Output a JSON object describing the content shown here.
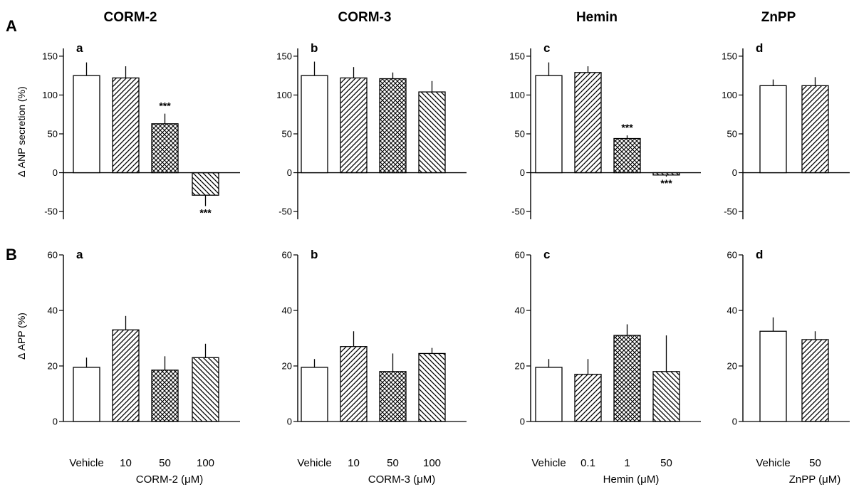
{
  "row_labels": [
    "A",
    "B"
  ],
  "column_titles": [
    "CORM-2",
    "CORM-3",
    "Hemin",
    "ZnPP"
  ],
  "colors": {
    "ink": "#000000",
    "background": "#ffffff"
  },
  "chart_data": [
    {
      "type": "bar",
      "row": "A",
      "panel": "a",
      "title": "CORM-2",
      "categories": [
        "Vehicle",
        "10",
        "50",
        "100"
      ],
      "values": [
        125,
        122,
        63,
        -29
      ],
      "errors": [
        17,
        15,
        13,
        14
      ],
      "patterns": [
        "open",
        "hatch-right",
        "crosshatch",
        "hatch-left"
      ],
      "significance": [
        "",
        "",
        "***",
        "***"
      ],
      "ylabel": "Δ ANP secretion (%)",
      "yticks": [
        -50,
        0,
        50,
        100,
        150
      ],
      "ylim": [
        -60,
        160
      ],
      "xlabel": "CORM-2 (μM)"
    },
    {
      "type": "bar",
      "row": "A",
      "panel": "b",
      "title": "CORM-3",
      "categories": [
        "Vehicle",
        "10",
        "50",
        "100"
      ],
      "values": [
        125,
        122,
        121,
        104
      ],
      "errors": [
        18,
        14,
        8,
        14
      ],
      "patterns": [
        "open",
        "hatch-right",
        "crosshatch",
        "hatch-left"
      ],
      "significance": [
        "",
        "",
        "",
        ""
      ],
      "yticks": [
        -50,
        0,
        50,
        100,
        150
      ],
      "ylim": [
        -60,
        160
      ],
      "xlabel": "CORM-3 (μM)"
    },
    {
      "type": "bar",
      "row": "A",
      "panel": "c",
      "title": "Hemin",
      "categories": [
        "Vehicle",
        "0.1",
        "1",
        "50"
      ],
      "values": [
        125,
        129,
        44,
        -3
      ],
      "errors": [
        17,
        8,
        4,
        2
      ],
      "patterns": [
        "open",
        "hatch-right",
        "crosshatch",
        "hatch-left"
      ],
      "significance": [
        "",
        "",
        "***",
        "***"
      ],
      "yticks": [
        -50,
        0,
        50,
        100,
        150
      ],
      "ylim": [
        -60,
        160
      ],
      "xlabel": "Hemin (μM)"
    },
    {
      "type": "bar",
      "row": "A",
      "panel": "d",
      "title": "ZnPP",
      "categories": [
        "Vehicle",
        "50"
      ],
      "values": [
        112,
        112
      ],
      "errors": [
        8,
        11
      ],
      "patterns": [
        "open",
        "hatch-right"
      ],
      "significance": [
        "",
        ""
      ],
      "yticks": [
        -50,
        0,
        50,
        100,
        150
      ],
      "ylim": [
        -60,
        160
      ],
      "xlabel": "ZnPP (μM)"
    },
    {
      "type": "bar",
      "row": "B",
      "panel": "a",
      "categories": [
        "Vehicle",
        "10",
        "50",
        "100"
      ],
      "values": [
        19.5,
        33,
        18.5,
        23
      ],
      "errors": [
        3.5,
        5,
        5,
        5
      ],
      "patterns": [
        "open",
        "hatch-right",
        "crosshatch",
        "hatch-left"
      ],
      "significance": [
        "",
        "",
        "",
        ""
      ],
      "ylabel": "Δ APP (%)",
      "yticks": [
        0,
        20,
        40,
        60
      ],
      "ylim": [
        0,
        60
      ],
      "xlabel": "CORM-2 (μM)"
    },
    {
      "type": "bar",
      "row": "B",
      "panel": "b",
      "categories": [
        "Vehicle",
        "10",
        "50",
        "100"
      ],
      "values": [
        19.5,
        27,
        18,
        24.5
      ],
      "errors": [
        3,
        5.5,
        6.5,
        2
      ],
      "patterns": [
        "open",
        "hatch-right",
        "crosshatch",
        "hatch-left"
      ],
      "significance": [
        "",
        "",
        "",
        ""
      ],
      "yticks": [
        0,
        20,
        40,
        60
      ],
      "ylim": [
        0,
        60
      ],
      "xlabel": "CORM-3 (μM)"
    },
    {
      "type": "bar",
      "row": "B",
      "panel": "c",
      "categories": [
        "Vehicle",
        "0.1",
        "1",
        "50"
      ],
      "values": [
        19.5,
        17,
        31,
        18
      ],
      "errors": [
        3,
        5.5,
        4,
        13
      ],
      "patterns": [
        "open",
        "hatch-right",
        "crosshatch",
        "hatch-left"
      ],
      "significance": [
        "",
        "",
        "",
        ""
      ],
      "yticks": [
        0,
        20,
        40,
        60
      ],
      "ylim": [
        0,
        60
      ],
      "xlabel": "Hemin (μM)"
    },
    {
      "type": "bar",
      "row": "B",
      "panel": "d",
      "categories": [
        "Vehicle",
        "50"
      ],
      "values": [
        32.5,
        29.5
      ],
      "errors": [
        5,
        3
      ],
      "patterns": [
        "open",
        "hatch-right"
      ],
      "significance": [
        "",
        ""
      ],
      "yticks": [
        0,
        20,
        40,
        60
      ],
      "ylim": [
        0,
        60
      ],
      "xlabel": "ZnPP (μM)"
    }
  ]
}
